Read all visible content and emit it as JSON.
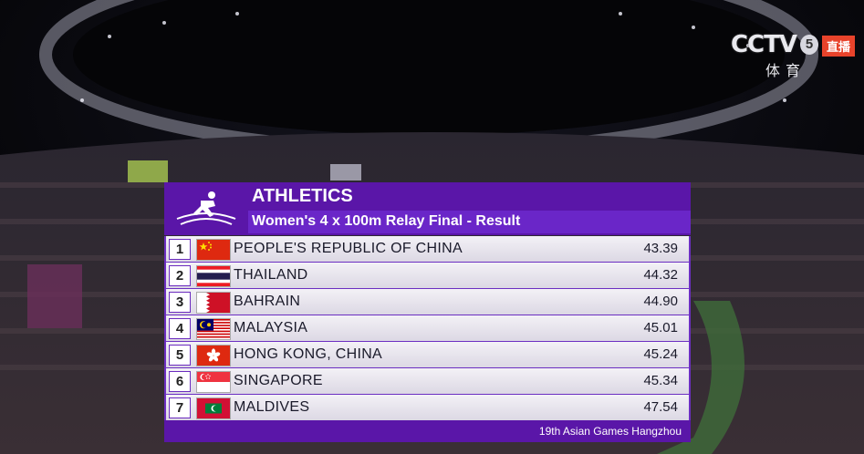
{
  "broadcast": {
    "channel": "CCTV",
    "channel_number": "5",
    "sub_label": "体育",
    "live_label": "直播"
  },
  "results": {
    "sport": "ATHLETICS",
    "event": "Women's 4 x 100m Relay Final - Result",
    "rows": [
      {
        "rank": "1",
        "country": "PEOPLE'S REPUBLIC OF CHINA",
        "time": "43.39",
        "flag": "china-flag-icon"
      },
      {
        "rank": "2",
        "country": "THAILAND",
        "time": "44.32",
        "flag": "thailand-flag-icon"
      },
      {
        "rank": "3",
        "country": "BAHRAIN",
        "time": "44.90",
        "flag": "bahrain-flag-icon"
      },
      {
        "rank": "4",
        "country": "MALAYSIA",
        "time": "45.01",
        "flag": "malaysia-flag-icon"
      },
      {
        "rank": "5",
        "country": "HONG KONG, CHINA",
        "time": "45.24",
        "flag": "hong-kong-flag-icon"
      },
      {
        "rank": "6",
        "country": "SINGAPORE",
        "time": "45.34",
        "flag": "singapore-flag-icon"
      },
      {
        "rank": "7",
        "country": "MALDIVES",
        "time": "47.54",
        "flag": "maldives-flag-icon"
      }
    ],
    "footer": "19th Asian Games Hangzhou"
  },
  "colors": {
    "panel_purple": "#5a16a8",
    "row_background": "#eeecf2",
    "live_red": "#e8432b"
  }
}
